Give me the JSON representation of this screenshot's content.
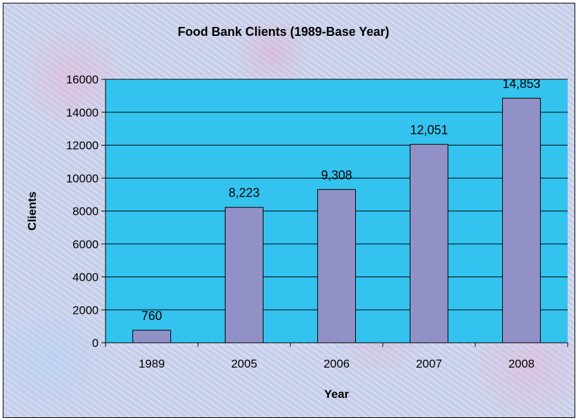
{
  "chart_data": {
    "type": "bar",
    "title": "Food Bank Clients (1989-Base Year)",
    "xlabel": "Year",
    "ylabel": "Clients",
    "categories": [
      "1989",
      "2005",
      "2006",
      "2007",
      "2008"
    ],
    "values": [
      760,
      8223,
      9308,
      12051,
      14853
    ],
    "data_labels": [
      "760",
      "8,223",
      "9,308",
      "12,051",
      "14,853"
    ],
    "yticks": [
      "0",
      "2000",
      "4000",
      "6000",
      "8000",
      "10000",
      "12000",
      "14000",
      "16000"
    ],
    "ylim": [
      0,
      16000
    ],
    "ystep": 2000,
    "grid": true,
    "legend": "none",
    "colors": {
      "plot_background": "#33c3ee",
      "bar_fill": "#9191c7",
      "bar_stroke": "#000000",
      "gridline": "#000000"
    }
  }
}
